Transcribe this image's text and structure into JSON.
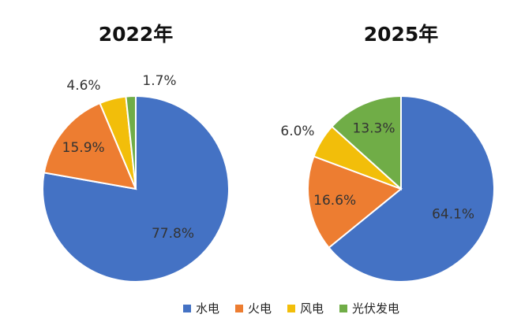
{
  "colors": {
    "hydro": "#4472C4",
    "thermal": "#ED7D31",
    "wind": "#F2BE0A",
    "solar": "#70AD47",
    "inside_label": "#333333",
    "outside_label": "#333333"
  },
  "legend": [
    {
      "label": "水电",
      "color_key": "hydro"
    },
    {
      "label": "火电",
      "color_key": "thermal"
    },
    {
      "label": "风电",
      "color_key": "wind"
    },
    {
      "label": "光伏发电",
      "color_key": "solar"
    }
  ],
  "chart_data": [
    {
      "type": "pie",
      "title": "2022年",
      "categories": [
        "水电",
        "火电",
        "风电",
        "光伏发电"
      ],
      "values": [
        77.8,
        15.9,
        4.6,
        1.7
      ],
      "data_labels": [
        "77.8%",
        "15.9%",
        "4.6%",
        "1.7%"
      ],
      "start": "12 o'clock, clockwise"
    },
    {
      "type": "pie",
      "title": "2025年",
      "categories": [
        "水电",
        "火电",
        "风电",
        "光伏发电"
      ],
      "values": [
        64.1,
        16.6,
        6.0,
        13.3
      ],
      "data_labels": [
        "64.1%",
        "16.6%",
        "6.0%",
        "13.3%"
      ],
      "start": "12 o'clock, clockwise"
    }
  ]
}
